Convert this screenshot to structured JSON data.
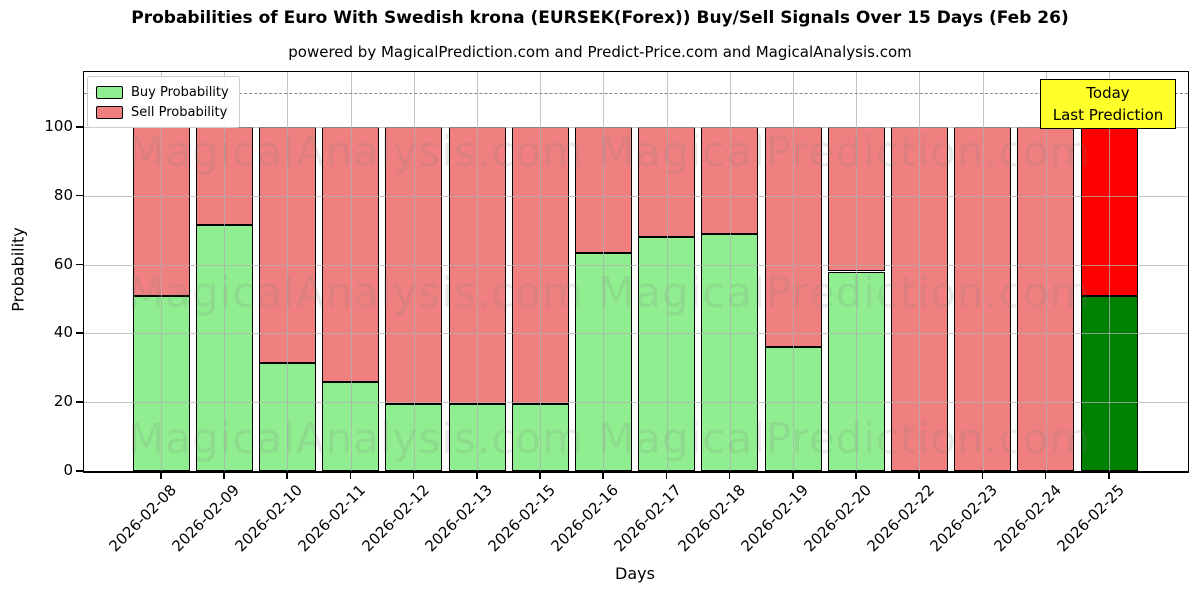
{
  "figure": {
    "title": "Probabilities of Euro With Swedish krona (EURSEK(Forex)) Buy/Sell Signals Over 15 Days (Feb 26)",
    "subtitle": "powered by MagicalPrediction.com and Predict-Price.com and MagicalAnalysis.com",
    "watermarks": [
      "MagicalAnalysis.com",
      "MagicalPrediction.com"
    ]
  },
  "legend": {
    "items": [
      {
        "label": "Buy Probability",
        "color": "#90ee90"
      },
      {
        "label": "Sell Probability",
        "color": "#f08080"
      }
    ]
  },
  "today_box": {
    "line1": "Today",
    "line2": "Last Prediction",
    "bg": "#ffff29"
  },
  "axes": {
    "xlabel": "Days",
    "ylabel": "Probability",
    "y_ticks": [
      0,
      20,
      40,
      60,
      80,
      100
    ]
  },
  "chart_data": {
    "type": "bar",
    "stacked": true,
    "title": "Probabilities of Euro With Swedish krona (EURSEK(Forex)) Buy/Sell Signals Over 15 Days (Feb 26)",
    "xlabel": "Days",
    "ylabel": "Probability",
    "ylim": [
      0,
      116
    ],
    "grid": true,
    "legend_position": "upper left",
    "dashed_line_y": 110,
    "bar_edge_color": "#000000",
    "categories": [
      "2026-02-08",
      "2026-02-09",
      "2026-02-10",
      "2026-02-11",
      "2026-02-12",
      "2026-02-13",
      "2026-02-15",
      "2026-02-16",
      "2026-02-17",
      "2026-02-18",
      "2026-02-19",
      "2026-02-20",
      "2026-02-22",
      "2026-02-23",
      "2026-02-24",
      "2026-02-25"
    ],
    "series": [
      {
        "name": "Buy Probability",
        "color": "#90ee90",
        "values": [
          51,
          71.5,
          31.5,
          26,
          19.5,
          19.5,
          19.5,
          63.5,
          68,
          69,
          36,
          58,
          0,
          0,
          0,
          51
        ]
      },
      {
        "name": "Sell Probability",
        "color": "#f08080",
        "values": [
          49,
          28.5,
          68.5,
          74,
          80.5,
          80.5,
          80.5,
          36.5,
          32,
          31,
          64,
          42,
          100,
          100,
          100,
          49
        ]
      }
    ],
    "today_colors": {
      "buy": "#008000",
      "sell": "#ff0000"
    },
    "today_index": 15
  }
}
